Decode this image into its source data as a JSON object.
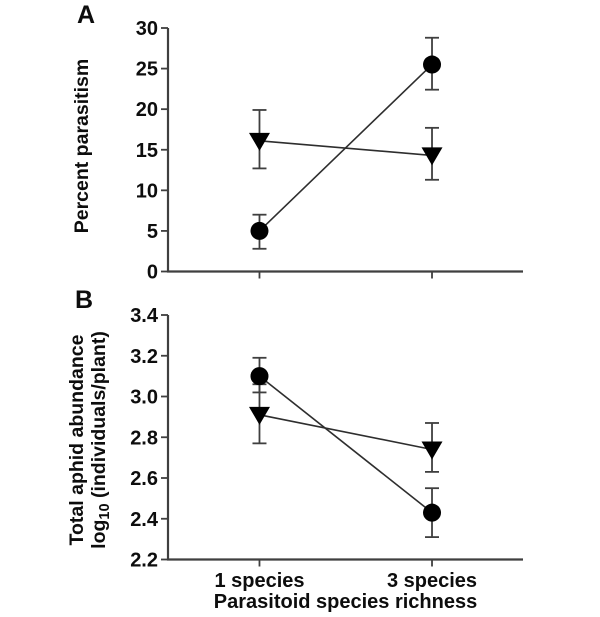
{
  "figure": {
    "background": "#ffffff",
    "text_color": "#0d0d0d",
    "axis_color": "#3f3f3f",
    "line_color": "#2e2e2e",
    "marker_color": "#000000"
  },
  "xlabel": "Parasitoid species richness",
  "x_tick_labels": [
    "1 species",
    "3 species"
  ],
  "chart_data": [
    {
      "type": "line",
      "panel_label": "A",
      "ylabel": "Percent parasitism",
      "ylabel_lines": [
        [
          {
            "text": "Percent parasitism",
            "sub": false
          }
        ]
      ],
      "categories": [
        "1 species",
        "3 species"
      ],
      "ylim": [
        0,
        30
      ],
      "yticks": [
        0,
        5,
        10,
        15,
        20,
        25,
        30
      ],
      "ytick_labels": [
        "0",
        "5",
        "10",
        "15",
        "20",
        "25",
        "30"
      ],
      "grid": false,
      "legend": "none",
      "series": [
        {
          "name": "filled-circle",
          "marker": "circle",
          "values": [
            5.0,
            25.5
          ],
          "err_low": [
            2.8,
            22.4
          ],
          "err_high": [
            7.0,
            28.8
          ]
        },
        {
          "name": "filled-triangle-down",
          "marker": "triangle-down",
          "values": [
            16.1,
            14.3
          ],
          "err_low": [
            12.7,
            11.3
          ],
          "err_high": [
            19.9,
            17.7
          ]
        }
      ]
    },
    {
      "type": "line",
      "panel_label": "B",
      "ylabel": "Total aphid abundance log10 (individuals/plant)",
      "ylabel_lines": [
        [
          {
            "text": "Total aphid abundance",
            "sub": false
          }
        ],
        [
          {
            "text": "log",
            "sub": false
          },
          {
            "text": "10",
            "sub": true
          },
          {
            "text": " (individuals/plant)",
            "sub": false
          }
        ]
      ],
      "categories": [
        "1 species",
        "3 species"
      ],
      "ylim": [
        2.2,
        3.4
      ],
      "yticks": [
        2.2,
        2.4,
        2.6,
        2.8,
        3.0,
        3.2,
        3.4
      ],
      "ytick_labels": [
        "2.2",
        "2.4",
        "2.6",
        "2.8",
        "3.0",
        "3.2",
        "3.4"
      ],
      "grid": false,
      "legend": "none",
      "series": [
        {
          "name": "filled-circle",
          "marker": "circle",
          "values": [
            3.1,
            2.43
          ],
          "err_low": [
            3.02,
            2.31
          ],
          "err_high": [
            3.19,
            2.55
          ]
        },
        {
          "name": "filled-triangle-down",
          "marker": "triangle-down",
          "values": [
            2.91,
            2.74
          ],
          "err_low": [
            2.77,
            2.63
          ],
          "err_high": [
            3.06,
            2.87
          ]
        }
      ]
    }
  ]
}
